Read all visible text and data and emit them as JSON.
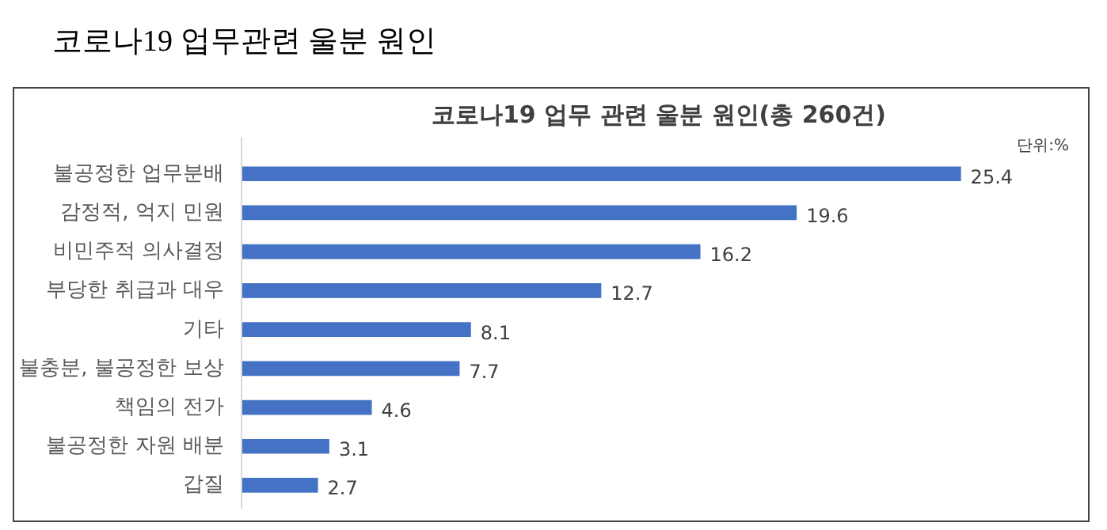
{
  "chart_data": {
    "type": "bar",
    "orientation": "horizontal",
    "title": "코로나19 업무 관련 울분 원인(총 260건)",
    "annotations": [
      "코로나19 업무관련 울분 원인",
      "단위:%"
    ],
    "categories": [
      "불공정한 업무분배",
      "감정적, 억지 민원",
      "비민주적 의사결정",
      "부당한 취급과 대우",
      "기타",
      "불충분, 불공정한 보상",
      "책임의 전가",
      "불공정한 자원 배분",
      "갑질"
    ],
    "values": [
      25.4,
      19.6,
      16.2,
      12.7,
      8.1,
      7.7,
      4.6,
      3.1,
      2.7
    ],
    "color": "#4472c4",
    "data_labels": true,
    "grid": false
  }
}
